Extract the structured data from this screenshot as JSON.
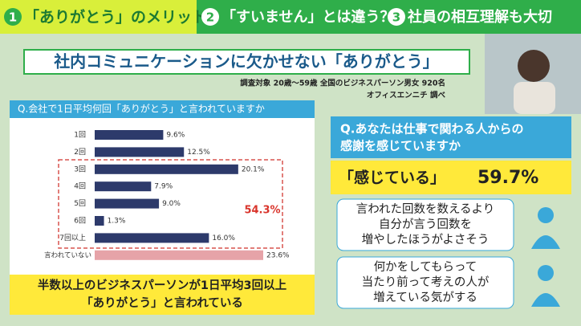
{
  "header": {
    "tabs": [
      {
        "number": "1",
        "label": "「ありがとう」のメリット"
      },
      {
        "number": "2",
        "label": "「すいません」とは違う？"
      },
      {
        "number": "3",
        "label": "社員の相互理解も大切"
      }
    ]
  },
  "panel": {
    "title": "社内コミュニケーションに欠かせない「ありがとう」",
    "source": [
      "調査対象 20歳～59歳 全国のビジネスパーソン男女 920名",
      "オフィスエンニチ 調べ"
    ]
  },
  "chart_data": {
    "type": "bar",
    "orientation": "horizontal",
    "title": "Q.会社で1日平均何回「ありがとう」と言われていますか",
    "categories": [
      "1回",
      "2回",
      "3回",
      "4回",
      "5回",
      "6回",
      "7回以上",
      "言われていない"
    ],
    "values": [
      9.6,
      12.5,
      20.1,
      7.9,
      9.0,
      1.3,
      16.0,
      23.6
    ],
    "value_labels": [
      "9.6%",
      "12.5%",
      "20.1%",
      "7.9%",
      "9.0%",
      "1.3%",
      "16.0%",
      "23.6%"
    ],
    "colors": [
      "#2d3a6b",
      "#2d3a6b",
      "#2d3a6b",
      "#2d3a6b",
      "#2d3a6b",
      "#2d3a6b",
      "#2d3a6b",
      "#e6a3a8"
    ],
    "annotation": "54.3%",
    "conclusion": [
      "半数以上のビジネスパーソンが1日平均3回以上",
      "「ありがとう」と言われている"
    ]
  },
  "right": {
    "question": [
      "Q.あなたは仕事で関わる人からの",
      "感謝を感じていますか"
    ],
    "answer": "「感じている」",
    "answer_value": "59.7%",
    "comments": [
      [
        "言われた回数を数えるより",
        "自分が言う回数を",
        "増やしたほうがよさそう"
      ],
      [
        "何かをしてもらって",
        "当たり前って考えの人が",
        "増えている気がする"
      ]
    ]
  }
}
